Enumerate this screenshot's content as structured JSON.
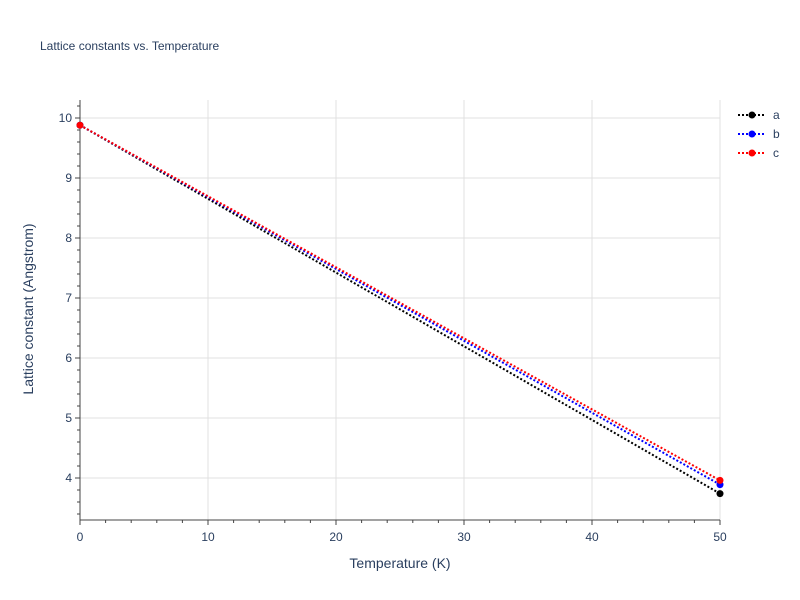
{
  "chart_data": {
    "type": "line",
    "title": "Lattice constants vs. Temperature",
    "xlabel": "Temperature (K)",
    "ylabel": "Lattice constant (Angstrom)",
    "xlim": [
      0,
      50
    ],
    "ylim": [
      3.3,
      10.3
    ],
    "xticks": [
      0,
      10,
      20,
      30,
      40,
      50
    ],
    "yticks": [
      4,
      5,
      6,
      7,
      8,
      9,
      10
    ],
    "grid": true,
    "legend_position": "top-right",
    "line_style": "dotted",
    "series": [
      {
        "name": "a",
        "color": "#000000",
        "x": [
          0,
          50
        ],
        "y": [
          9.88,
          3.74
        ]
      },
      {
        "name": "b",
        "color": "#0000ff",
        "x": [
          0,
          50
        ],
        "y": [
          9.88,
          3.89
        ]
      },
      {
        "name": "c",
        "color": "#ff0000",
        "x": [
          0,
          50
        ],
        "y": [
          9.88,
          3.96
        ]
      }
    ]
  }
}
